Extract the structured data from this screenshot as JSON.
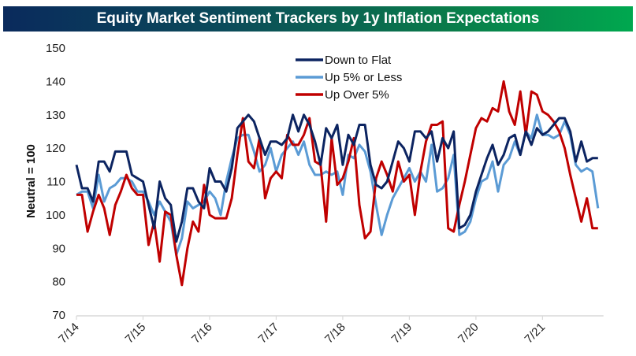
{
  "chart_data": {
    "type": "line",
    "title": "Equity Market Sentiment Trackers by 1y Inflation Expectations",
    "xlabel": "",
    "ylabel": "Neutral = 100",
    "ylim": [
      70,
      150
    ],
    "yticks": [
      70,
      80,
      90,
      100,
      110,
      120,
      130,
      140,
      150
    ],
    "xtick_labels": [
      "7/14",
      "7/15",
      "7/16",
      "7/17",
      "7/18",
      "7/19",
      "7/20",
      "7/21"
    ],
    "x_start": "2014-07",
    "x_step": "month",
    "grid": false,
    "legend_position": "top-center",
    "series": [
      {
        "name": "Down to Flat",
        "color": "#0c2461",
        "values": [
          115,
          108,
          108,
          104,
          116,
          116,
          113,
          119,
          119,
          119,
          112,
          111,
          110,
          103,
          96,
          110,
          105,
          103,
          92,
          98,
          108,
          108,
          104,
          102,
          114,
          110,
          110,
          107,
          114,
          126,
          128,
          130,
          128,
          123,
          118,
          122,
          122,
          121,
          123,
          130,
          125,
          130,
          127,
          122,
          115,
          126,
          123,
          127,
          115,
          124,
          121,
          127,
          127,
          115,
          109,
          108,
          110,
          116,
          122,
          120,
          116,
          125,
          125,
          123,
          125,
          116,
          123,
          120,
          125,
          96,
          97,
          100,
          107,
          112,
          117,
          121,
          115,
          118,
          123,
          124,
          118,
          125,
          121,
          126,
          124,
          125,
          127,
          129,
          129,
          125,
          116,
          122,
          116,
          117,
          117
        ]
      },
      {
        "name": "Up 5% or Less",
        "color": "#5b9bd5",
        "values": [
          106,
          107,
          107,
          102,
          112,
          104,
          108,
          109,
          111,
          111,
          110,
          107,
          107,
          104,
          100,
          104,
          101,
          98,
          88,
          93,
          104,
          102,
          103,
          104,
          107,
          105,
          100,
          110,
          117,
          123,
          124,
          124,
          119,
          113,
          115,
          120,
          113,
          118,
          120,
          122,
          118,
          122,
          115,
          112,
          112,
          113,
          112,
          113,
          106,
          118,
          117,
          121,
          119,
          113,
          103,
          94,
          100,
          105,
          108,
          111,
          114,
          110,
          113,
          110,
          121,
          107,
          108,
          111,
          118,
          94,
          95,
          98,
          105,
          110,
          111,
          116,
          107,
          115,
          117,
          122,
          118,
          125,
          123,
          130,
          124,
          124,
          123,
          124,
          128,
          124,
          115,
          113,
          114,
          113,
          102
        ]
      },
      {
        "name": "Up Over 5%",
        "color": "#c00000",
        "values": [
          106,
          106,
          95,
          101,
          106,
          102,
          94,
          103,
          107,
          112,
          108,
          106,
          106,
          91,
          98,
          86,
          101,
          100,
          88,
          79,
          90,
          98,
          95,
          109,
          100,
          99,
          99,
          99,
          105,
          118,
          129,
          116,
          114,
          123,
          105,
          111,
          113,
          111,
          124,
          121,
          121,
          124,
          129,
          116,
          115,
          98,
          123,
          109,
          111,
          116,
          123,
          103,
          93,
          95,
          111,
          116,
          112,
          107,
          116,
          110,
          112,
          100,
          113,
          122,
          127,
          127,
          128,
          96,
          95,
          103,
          110,
          118,
          126,
          129,
          128,
          132,
          131,
          140,
          131,
          127,
          137,
          124,
          137,
          136,
          131,
          130,
          128,
          125,
          120,
          112,
          105,
          98,
          105,
          96,
          96
        ]
      }
    ]
  }
}
